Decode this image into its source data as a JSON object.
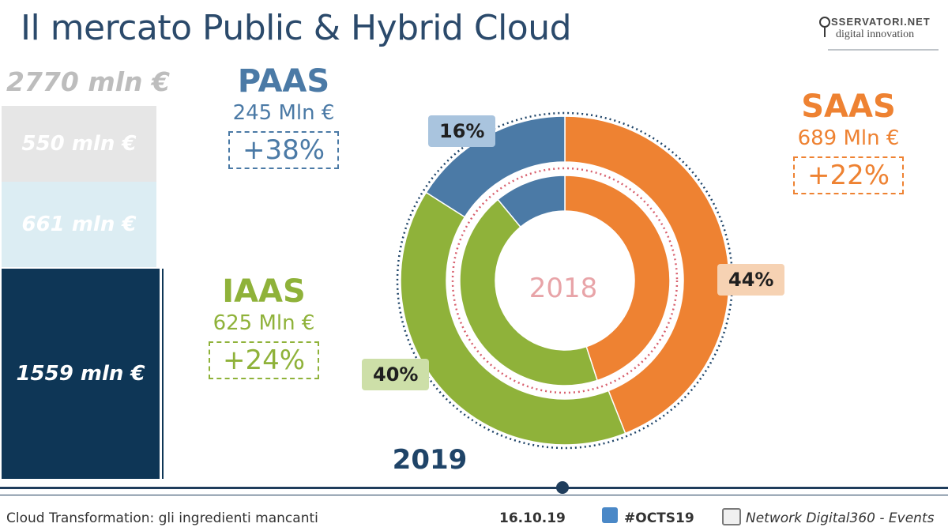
{
  "title": "Il mercato Public & Hybrid Cloud",
  "logo": {
    "line1": "SSERVATORI.NET",
    "line2": "digital innovation"
  },
  "stack": {
    "total": "2770 mln €",
    "segments": [
      {
        "label": "550 mln €"
      },
      {
        "label": "661 mln €"
      },
      {
        "label": "1559 mln €"
      }
    ]
  },
  "labels": {
    "paas": {
      "name": "PAAS",
      "amount": "245 Mln €",
      "growth": "+38%"
    },
    "iaas": {
      "name": "IAAS",
      "amount": "625 Mln €",
      "growth": "+24%"
    },
    "saas": {
      "name": "SAAS",
      "amount": "689 Mln €",
      "growth": "+22%"
    }
  },
  "chart_data": {
    "type": "pie",
    "variant": "double-donut",
    "inner_label": "2018",
    "outer_label": "2019",
    "colors": {
      "SAAS": "#ee8232",
      "IAAS": "#8fb23a",
      "PAAS": "#4b7aa6"
    },
    "outer_ring": {
      "year": "2019",
      "slices": [
        {
          "name": "SAAS",
          "value": 44,
          "label": "44%"
        },
        {
          "name": "IAAS",
          "value": 40,
          "label": "40%"
        },
        {
          "name": "PAAS",
          "value": 16,
          "label": "16%"
        }
      ]
    },
    "inner_ring": {
      "year": "2018",
      "slices": [
        {
          "name": "SAAS",
          "value": 45
        },
        {
          "name": "IAAS",
          "value": 44
        },
        {
          "name": "PAAS",
          "value": 11
        }
      ]
    }
  },
  "footer": {
    "left": "Cloud Transformation: gli ingredienti mancanti",
    "date": "16.10.19",
    "hashtag": "#OCTS19",
    "network": "Network Digital360 - Events"
  }
}
